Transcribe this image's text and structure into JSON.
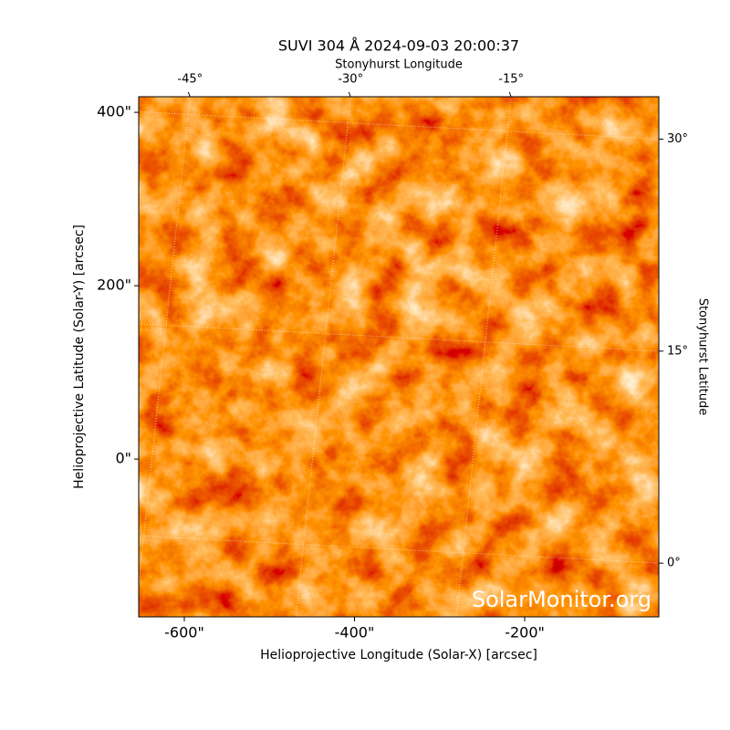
{
  "chart_data": {
    "type": "image",
    "title": "SUVI 304 Å 2024-09-03 20:00:37",
    "xlabel": "Helioprojective Longitude (Solar-X) [arcsec]",
    "ylabel": "Helioprojective Latitude (Solar-Y) [arcsec]",
    "x2label": "Stonyhurst Longitude",
    "y2label": "Stonyhurst Latitude",
    "watermark": "SolarMonitor.org",
    "xlim": [
      -653.6,
      -42.4
    ],
    "ylim": [
      -182,
      418
    ],
    "xticks": [
      {
        "value": -600,
        "label": "-600\""
      },
      {
        "value": -400,
        "label": "-400\""
      },
      {
        "value": -200,
        "label": "-200\""
      }
    ],
    "yticks": [
      {
        "value": 0,
        "label": "0\""
      },
      {
        "value": 200,
        "label": "200\""
      },
      {
        "value": 400,
        "label": "400\""
      }
    ],
    "x2lim": [
      -49.8,
      -1.2
    ],
    "y2lim": [
      -3.8,
      33
    ],
    "x2ticks": [
      {
        "value": -45,
        "label": "-45°"
      },
      {
        "value": -30,
        "label": "-30°"
      },
      {
        "value": -15,
        "label": "-15°"
      }
    ],
    "y2ticks": [
      {
        "value": 0,
        "label": "0°"
      },
      {
        "value": 15,
        "label": "15°"
      },
      {
        "value": 30,
        "label": "30°"
      }
    ],
    "grid": true
  }
}
